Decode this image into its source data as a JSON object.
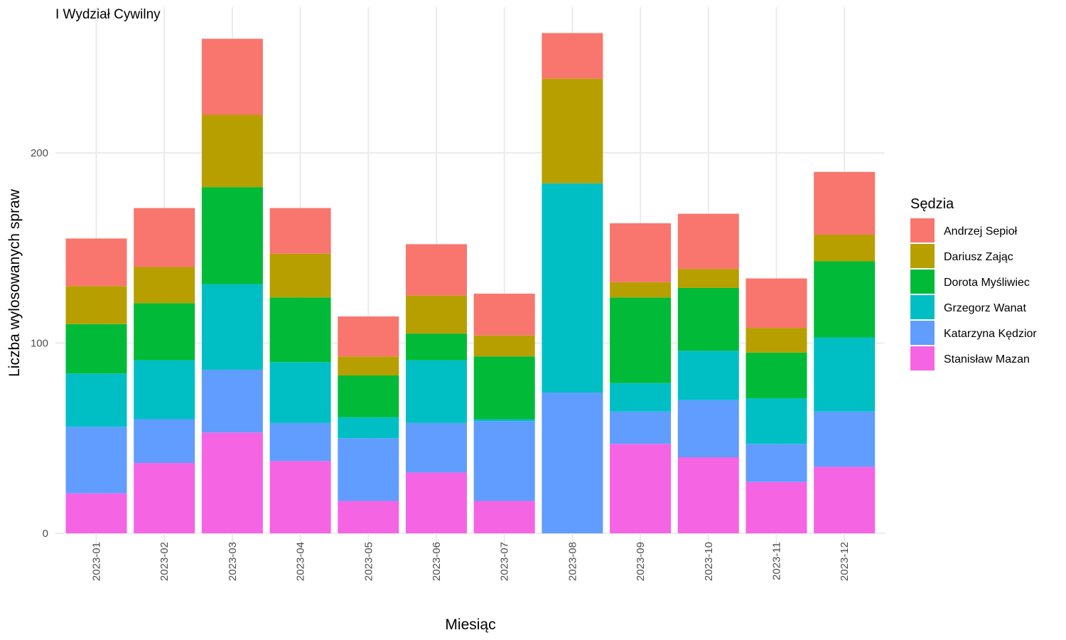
{
  "chart_data": {
    "type": "bar",
    "stacked": true,
    "title": "I Wydział Cywilny",
    "xlabel": "Miesiąc",
    "ylabel": "Liczba wylosowanych spraw",
    "ylim": [
      -10,
      270
    ],
    "yticks": [
      0,
      100,
      200
    ],
    "grid": true,
    "legend": {
      "title": "Sędzia",
      "position": "right"
    },
    "categories": [
      "2023-01",
      "2023-02",
      "2023-03",
      "2023-04",
      "2023-05",
      "2023-06",
      "2023-07",
      "2023-08",
      "2023-09",
      "2023-10",
      "2023-11",
      "2023-12"
    ],
    "series": [
      {
        "name": "Stanisław Mazan",
        "color": "#F564E3",
        "values": [
          21,
          37,
          53,
          38,
          17,
          32,
          17,
          0,
          47,
          40,
          27,
          35
        ]
      },
      {
        "name": "Katarzyna Kędzior",
        "color": "#619CFF",
        "values": [
          35,
          23,
          33,
          20,
          33,
          26,
          42,
          74,
          17,
          30,
          20,
          29
        ]
      },
      {
        "name": "Grzegorz Wanat",
        "color": "#00BFC4",
        "values": [
          28,
          31,
          45,
          32,
          11,
          33,
          1,
          110,
          15,
          26,
          24,
          39
        ]
      },
      {
        "name": "Dorota Myśliwiec",
        "color": "#00BA38",
        "values": [
          26,
          30,
          51,
          34,
          22,
          14,
          33,
          0,
          45,
          33,
          24,
          40
        ]
      },
      {
        "name": "Dariusz Zając",
        "color": "#B79F00",
        "values": [
          20,
          19,
          38,
          23,
          10,
          20,
          11,
          55,
          8,
          10,
          13,
          14
        ]
      },
      {
        "name": "Andrzej Sepioł",
        "color": "#F8766D",
        "values": [
          25,
          31,
          40,
          24,
          21,
          27,
          22,
          24,
          31,
          29,
          26,
          33
        ]
      }
    ]
  }
}
